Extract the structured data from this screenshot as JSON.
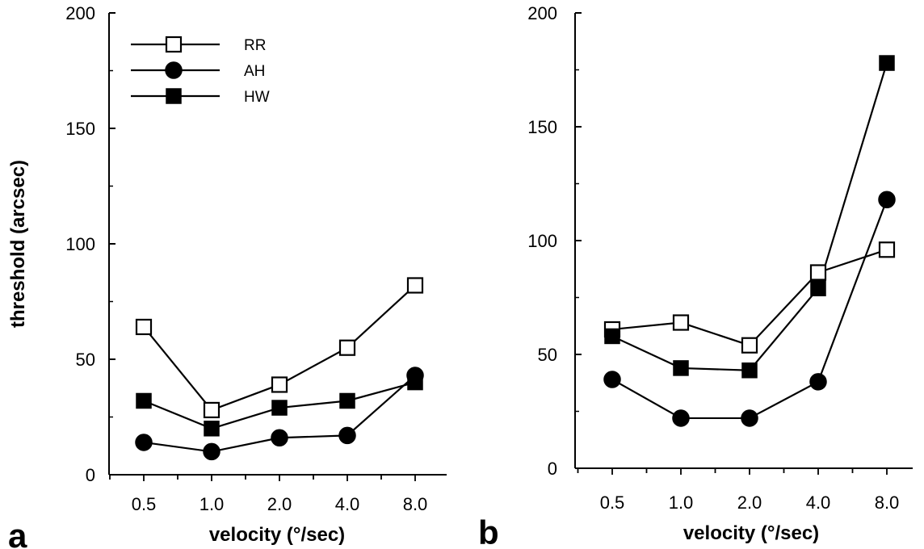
{
  "chart_data": [
    {
      "panel": "a",
      "type": "line",
      "xlabel": "velocity  (°/sec)",
      "ylabel": "threshold  (arcsec)",
      "categories": [
        "0.5",
        "1.0",
        "2.0",
        "4.0",
        "8.0"
      ],
      "ylim": [
        0,
        200
      ],
      "yticks": [
        "0",
        "50",
        "100",
        "150",
        "200"
      ],
      "grid": false,
      "legend": "top-left",
      "series": [
        {
          "name": "RR",
          "marker": "open-square",
          "values": [
            64,
            28,
            39,
            55,
            82
          ]
        },
        {
          "name": "AH",
          "marker": "filled-circle",
          "values": [
            14,
            10,
            16,
            17,
            43
          ]
        },
        {
          "name": "HW",
          "marker": "filled-square",
          "values": [
            32,
            20,
            29,
            32,
            40
          ]
        }
      ]
    },
    {
      "panel": "b",
      "type": "line",
      "xlabel": "velocity  (°/sec)",
      "ylabel": "",
      "categories": [
        "0.5",
        "1.0",
        "2.0",
        "4.0",
        "8.0"
      ],
      "ylim": [
        0,
        200
      ],
      "yticks": [
        "0",
        "50",
        "100",
        "150",
        "200"
      ],
      "grid": false,
      "series": [
        {
          "name": "RR",
          "marker": "open-square",
          "values": [
            61,
            64,
            54,
            86,
            96
          ]
        },
        {
          "name": "AH",
          "marker": "filled-circle",
          "values": [
            39,
            22,
            22,
            38,
            118
          ]
        },
        {
          "name": "HW",
          "marker": "filled-square",
          "values": [
            58,
            44,
            43,
            79,
            178
          ]
        }
      ]
    }
  ]
}
